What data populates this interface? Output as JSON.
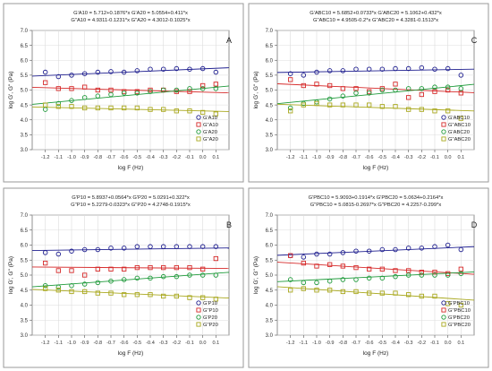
{
  "chart_data": [
    {
      "type": "scatter",
      "panel_label": "A",
      "equations": [
        "G'A10 = 5.712+0.1876*x   G'A20 = 5.0554+0.411*x",
        "G\"A10 = 4.9311-0.1231*x   G\"A20 = 4.3012-0.1025*x"
      ],
      "xlabel": "log F (Hz)",
      "ylabel": "log G', G'' (Pa)",
      "xlim": [
        -1.3,
        0.2
      ],
      "ylim": [
        3.0,
        7.0
      ],
      "x_ticks": [
        "-1.2",
        "-1.1",
        "-1.0",
        "-0.9",
        "-0.8",
        "-0.7",
        "-0.6",
        "-0.5",
        "-0.4",
        "-0.3",
        "-0.2",
        "-0.1",
        "0.0",
        "0.1"
      ],
      "y_ticks": [
        "3.0",
        "3.5",
        "4.0",
        "4.5",
        "5.0",
        "5.5",
        "6.0",
        "6.5",
        "7.0"
      ],
      "grid": true,
      "legend_position": "bottom-right",
      "x": [
        -1.2,
        -1.1,
        -1.0,
        -0.9,
        -0.8,
        -0.7,
        -0.6,
        -0.5,
        -0.4,
        -0.3,
        -0.2,
        -0.1,
        0.0,
        0.1
      ],
      "series": [
        {
          "name": "G'A10",
          "marker": "circle",
          "color": "#1f1f8f",
          "values": [
            5.6,
            5.45,
            5.5,
            5.55,
            5.6,
            5.62,
            5.6,
            5.65,
            5.7,
            5.7,
            5.72,
            5.7,
            5.72,
            5.6
          ],
          "fit": [
            5.712,
            0.1876
          ]
        },
        {
          "name": "G\"A10",
          "marker": "square",
          "color": "#d62a2a",
          "values": [
            5.25,
            5.05,
            5.05,
            5.1,
            5.0,
            5.0,
            4.95,
            4.95,
            5.0,
            5.0,
            4.95,
            4.95,
            5.15,
            5.2
          ],
          "fit": [
            4.9311,
            -0.1231
          ]
        },
        {
          "name": "G'A20",
          "marker": "circle",
          "color": "#1e9a3a",
          "values": [
            4.35,
            4.55,
            4.65,
            4.75,
            4.8,
            4.85,
            4.9,
            4.9,
            4.95,
            5.0,
            5.0,
            5.05,
            5.05,
            5.05
          ],
          "fit": [
            5.0554,
            0.411
          ]
        },
        {
          "name": "G\"A20",
          "marker": "square",
          "color": "#a9a81e",
          "values": [
            4.5,
            4.45,
            4.45,
            4.4,
            4.4,
            4.4,
            4.4,
            4.4,
            4.35,
            4.35,
            4.3,
            4.3,
            4.25,
            4.2
          ],
          "fit": [
            4.3012,
            -0.1025
          ]
        }
      ]
    },
    {
      "type": "scatter",
      "panel_label": "C",
      "equations": [
        "G'ABC10 = 5.6852+0.0733*x   G'ABC20 = 5.1062+0.432*x",
        "G\"ABC10 = 4.9505-0.2*x   G\"ABC20 = 4.3281-0.1513*x"
      ],
      "xlabel": "log F (Hz)",
      "ylabel": "log G', G'' (Pa)",
      "xlim": [
        -1.3,
        0.2
      ],
      "ylim": [
        3.0,
        7.0
      ],
      "x_ticks": [
        "-1.2",
        "-1.1",
        "-1.0",
        "-0.9",
        "-0.8",
        "-0.7",
        "-0.6",
        "-0.5",
        "-0.4",
        "-0.3",
        "-0.2",
        "-0.1",
        "0.0",
        "0.1"
      ],
      "y_ticks": [
        "3.0",
        "3.5",
        "4.0",
        "4.5",
        "5.0",
        "5.5",
        "6.0",
        "6.5",
        "7.0"
      ],
      "grid": true,
      "legend_position": "bottom-right",
      "x": [
        -1.2,
        -1.1,
        -1.0,
        -0.9,
        -0.8,
        -0.7,
        -0.6,
        -0.5,
        -0.4,
        -0.3,
        -0.2,
        -0.1,
        0.0,
        0.1
      ],
      "series": [
        {
          "name": "G'ABC10",
          "marker": "circle",
          "color": "#1f1f8f",
          "values": [
            5.55,
            5.5,
            5.6,
            5.65,
            5.65,
            5.7,
            5.7,
            5.7,
            5.72,
            5.72,
            5.75,
            5.7,
            5.72,
            5.5
          ],
          "fit": [
            5.6852,
            0.0733
          ]
        },
        {
          "name": "G\"ABC10",
          "marker": "square",
          "color": "#d62a2a",
          "values": [
            5.35,
            5.15,
            5.2,
            5.15,
            5.05,
            5.05,
            4.95,
            5.05,
            5.2,
            4.75,
            4.85,
            4.95,
            5.0,
            4.9
          ],
          "fit": [
            4.9505,
            -0.2
          ]
        },
        {
          "name": "G'ABC20",
          "marker": "circle",
          "color": "#1e9a3a",
          "values": [
            4.4,
            4.55,
            4.6,
            4.7,
            4.8,
            4.9,
            4.9,
            5.0,
            5.0,
            5.05,
            5.05,
            5.1,
            5.1,
            5.05
          ],
          "fit": [
            5.1062,
            0.432
          ]
        },
        {
          "name": "G\"ABC20",
          "marker": "square",
          "color": "#a9a81e",
          "values": [
            4.3,
            4.5,
            4.55,
            4.5,
            4.5,
            4.5,
            4.5,
            4.45,
            4.45,
            4.35,
            4.35,
            4.3,
            4.3,
            4.05
          ],
          "fit": [
            4.3281,
            -0.1513
          ]
        }
      ]
    },
    {
      "type": "scatter",
      "panel_label": "B",
      "equations": [
        "G'P10 = 5.8937+0.0564*x   G'P20 = 5.0291+0.322*x",
        "G\"P10 = 5.2279-0.0323*x   G\"P20 = 4.2748-0.1915*x"
      ],
      "xlabel": "log F (Hz)",
      "ylabel": "log G', G'' (Pa)",
      "xlim": [
        -1.3,
        0.2
      ],
      "ylim": [
        3.0,
        7.0
      ],
      "x_ticks": [
        "-1.2",
        "-1.1",
        "-1.0",
        "-0.9",
        "-0.8",
        "-0.7",
        "-0.6",
        "-0.5",
        "-0.4",
        "-0.3",
        "-0.2",
        "-0.1",
        "0.0",
        "0.1"
      ],
      "y_ticks": [
        "3.0",
        "3.5",
        "4.0",
        "4.5",
        "5.0",
        "5.5",
        "6.0",
        "6.5",
        "7.0"
      ],
      "grid": true,
      "legend_position": "bottom-right",
      "x": [
        -1.2,
        -1.1,
        -1.0,
        -0.9,
        -0.8,
        -0.7,
        -0.6,
        -0.5,
        -0.4,
        -0.3,
        -0.2,
        -0.1,
        0.0,
        0.1
      ],
      "series": [
        {
          "name": "G'P10",
          "marker": "circle",
          "color": "#1f1f8f",
          "values": [
            5.75,
            5.7,
            5.8,
            5.85,
            5.85,
            5.9,
            5.9,
            5.95,
            5.95,
            5.95,
            5.95,
            5.95,
            5.95,
            5.95
          ],
          "fit": [
            5.8937,
            0.0564
          ]
        },
        {
          "name": "G\"P10",
          "marker": "square",
          "color": "#d62a2a",
          "values": [
            5.4,
            5.15,
            5.15,
            5.0,
            5.2,
            5.2,
            5.2,
            5.25,
            5.25,
            5.25,
            5.25,
            5.25,
            5.2,
            5.55
          ],
          "fit": [
            5.2279,
            -0.0323
          ]
        },
        {
          "name": "G'P20",
          "marker": "circle",
          "color": "#1e9a3a",
          "values": [
            4.65,
            4.6,
            4.65,
            4.7,
            4.75,
            4.8,
            4.85,
            4.9,
            4.9,
            4.95,
            4.95,
            5.0,
            5.0,
            5.0
          ],
          "fit": [
            5.0291,
            0.322
          ]
        },
        {
          "name": "G\"P20",
          "marker": "square",
          "color": "#a9a81e",
          "values": [
            4.55,
            4.5,
            4.45,
            4.45,
            4.4,
            4.4,
            4.35,
            4.35,
            4.35,
            4.3,
            4.3,
            4.25,
            4.25,
            4.2
          ],
          "fit": [
            4.2748,
            -0.1915
          ]
        }
      ]
    },
    {
      "type": "scatter",
      "panel_label": "D",
      "equations": [
        "G'PBC10 = 5.9093+0.1914*x   G'PBC20 = 5.0634+0.2164*x",
        "G\"PBC10 = 5.0815-0.2697*x   G\"PBC20 = 4.2257-0.299*x"
      ],
      "xlabel": "log F (Hz)",
      "ylabel": "log G', G'' (Pa)",
      "xlim": [
        -1.3,
        0.2
      ],
      "ylim": [
        3.0,
        7.0
      ],
      "x_ticks": [
        "-1.2",
        "-1.1",
        "-1.0",
        "-0.9",
        "-0.8",
        "-0.7",
        "-0.6",
        "-0.5",
        "-0.4",
        "-0.3",
        "-0.2",
        "-0.1",
        "0.0",
        "0.1"
      ],
      "y_ticks": [
        "3.0",
        "3.5",
        "4.0",
        "4.5",
        "5.0",
        "5.5",
        "6.0",
        "6.5",
        "7.0"
      ],
      "grid": true,
      "legend_position": "bottom-right",
      "x": [
        -1.2,
        -1.1,
        -1.0,
        -0.9,
        -0.8,
        -0.7,
        -0.6,
        -0.5,
        -0.4,
        -0.3,
        -0.2,
        -0.1,
        0.0,
        0.1
      ],
      "series": [
        {
          "name": "G'PBC10",
          "marker": "circle",
          "color": "#1f1f8f",
          "values": [
            5.65,
            5.6,
            5.7,
            5.7,
            5.75,
            5.8,
            5.8,
            5.85,
            5.85,
            5.9,
            5.9,
            5.95,
            6.0,
            5.85
          ],
          "fit": [
            5.9093,
            0.1914
          ]
        },
        {
          "name": "G\"PBC10",
          "marker": "square",
          "color": "#d62a2a",
          "values": [
            5.65,
            5.4,
            5.3,
            5.35,
            5.3,
            5.25,
            5.2,
            5.2,
            5.15,
            5.15,
            5.1,
            5.1,
            5.05,
            5.2
          ],
          "fit": [
            5.0815,
            -0.2697
          ]
        },
        {
          "name": "G'PBC20",
          "marker": "circle",
          "color": "#1e9a3a",
          "values": [
            4.85,
            4.75,
            4.75,
            4.8,
            4.85,
            4.85,
            4.9,
            4.9,
            4.95,
            5.0,
            5.0,
            5.0,
            5.0,
            5.05
          ],
          "fit": [
            5.0634,
            0.2164
          ]
        },
        {
          "name": "G\"PBC20",
          "marker": "square",
          "color": "#a9a81e",
          "values": [
            4.5,
            4.55,
            4.5,
            4.5,
            4.45,
            4.45,
            4.4,
            4.4,
            4.4,
            4.35,
            4.3,
            4.3,
            4.05,
            4.0
          ],
          "fit": [
            4.2257,
            -0.299
          ]
        }
      ]
    }
  ]
}
